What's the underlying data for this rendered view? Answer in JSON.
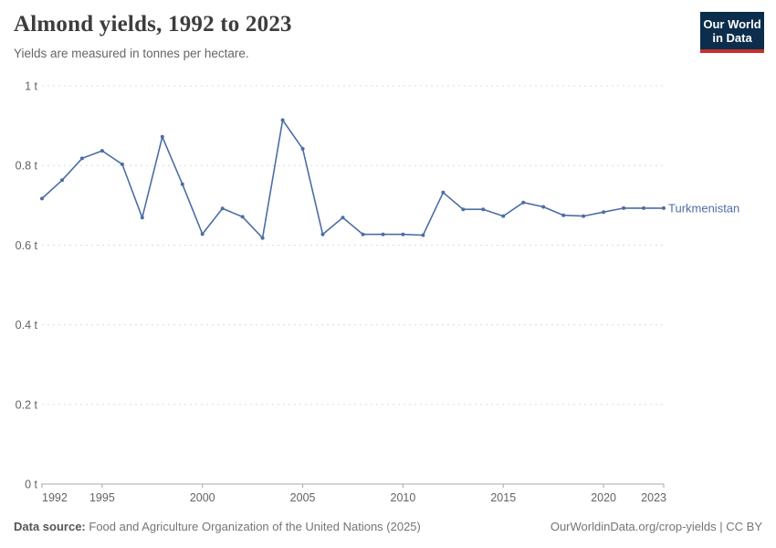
{
  "header": {
    "title": "Almond yields, 1992 to 2023",
    "subtitle": "Yields are measured in tonnes per hectare.",
    "logo": {
      "line1": "Our World",
      "line2": "in Data",
      "bg_color": "#0c2d4c",
      "bar_color": "#c5302a"
    }
  },
  "footer": {
    "source_label": "Data source:",
    "source_text": "Food and Agriculture Organization of the United Nations (2025)",
    "right_text": "OurWorldinData.org/crop-yields | CC BY"
  },
  "chart_data": {
    "type": "line",
    "title": "Almond yields, 1992 to 2023",
    "subtitle": "Yields are measured in tonnes per hectare.",
    "unit": "tonnes per hectare",
    "grid": "horizontal dashed",
    "legend_position": "end-of-line label",
    "ylim": [
      0,
      1
    ],
    "xlim": [
      1992,
      2023
    ],
    "x": [
      1992,
      1993,
      1994,
      1995,
      1996,
      1997,
      1998,
      1999,
      2000,
      2001,
      2002,
      2003,
      2004,
      2005,
      2006,
      2007,
      2008,
      2009,
      2010,
      2011,
      2012,
      2013,
      2014,
      2015,
      2016,
      2017,
      2018,
      2019,
      2020,
      2021,
      2022,
      2023
    ],
    "series": [
      {
        "name": "Turkmenistan",
        "color": "#4c6ea4",
        "values": [
          0.717,
          0.763,
          0.818,
          0.837,
          0.803,
          0.669,
          0.872,
          0.753,
          0.628,
          0.692,
          0.671,
          0.618,
          0.914,
          0.842,
          0.627,
          0.669,
          0.627,
          0.627,
          0.627,
          0.625,
          0.732,
          0.69,
          0.69,
          0.673,
          0.707,
          0.696,
          0.675,
          0.673,
          0.683,
          0.693,
          0.693,
          0.693
        ]
      }
    ],
    "yticks": [
      {
        "value": 0,
        "label": "0 t"
      },
      {
        "value": 0.2,
        "label": "0.2 t"
      },
      {
        "value": 0.4,
        "label": "0.4 t"
      },
      {
        "value": 0.6,
        "label": "0.6 t"
      },
      {
        "value": 0.8,
        "label": "0.8 t"
      },
      {
        "value": 1,
        "label": "1 t"
      }
    ],
    "xticks": [
      {
        "value": 1992,
        "label": "1992"
      },
      {
        "value": 1995,
        "label": "1995"
      },
      {
        "value": 2000,
        "label": "2000"
      },
      {
        "value": 2005,
        "label": "2005"
      },
      {
        "value": 2010,
        "label": "2010"
      },
      {
        "value": 2015,
        "label": "2015"
      },
      {
        "value": 2020,
        "label": "2020"
      },
      {
        "value": 2023,
        "label": "2023"
      }
    ]
  }
}
